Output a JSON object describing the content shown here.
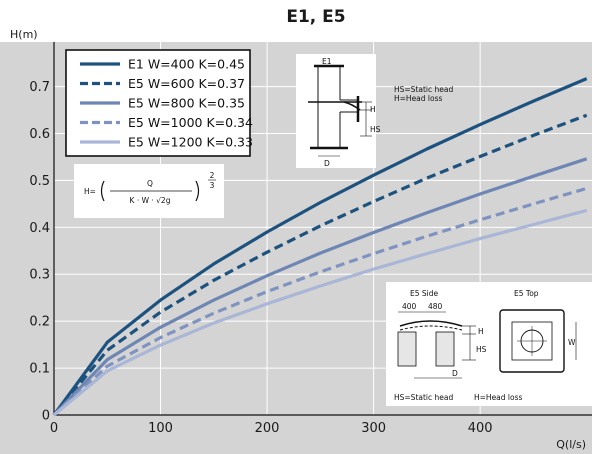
{
  "chart_data": {
    "type": "line",
    "title": "E1, E5",
    "xlabel": "Q(l/s)",
    "ylabel": "H(m)",
    "xlim": [
      0,
      500
    ],
    "ylim": [
      0,
      0.75
    ],
    "xticks": [
      "0",
      "100",
      "200",
      "300",
      "400"
    ],
    "yticks": [
      "0",
      "0.1",
      "0.2",
      "0.3",
      "0.4",
      "0.5",
      "0.6",
      "0.7"
    ],
    "grid": true,
    "legend_position": "top-left",
    "series": [
      {
        "name": "E1 W=400 K=0.45",
        "color": "#1d527f",
        "dash": "solid",
        "x": [
          0,
          50,
          100,
          150,
          200,
          250,
          300,
          350,
          400,
          450,
          500
        ],
        "y": [
          0,
          0.155,
          0.245,
          0.322,
          0.39,
          0.453,
          0.511,
          0.567,
          0.619,
          0.669,
          0.717
        ]
      },
      {
        "name": "E5 W=600 K=0.37",
        "color": "#1d527f",
        "dash": "dashed",
        "x": [
          0,
          50,
          100,
          150,
          200,
          250,
          300,
          350,
          400,
          450,
          500
        ],
        "y": [
          0,
          0.138,
          0.219,
          0.287,
          0.347,
          0.403,
          0.455,
          0.505,
          0.551,
          0.596,
          0.639
        ]
      },
      {
        "name": "E5 W=800 K=0.35",
        "color": "#6e86b3",
        "dash": "solid",
        "x": [
          0,
          50,
          100,
          150,
          200,
          250,
          300,
          350,
          400,
          450,
          500
        ],
        "y": [
          0,
          0.118,
          0.187,
          0.245,
          0.297,
          0.345,
          0.389,
          0.431,
          0.471,
          0.509,
          0.546
        ]
      },
      {
        "name": "E5 W=1000 K=0.34",
        "color": "#7f93c0",
        "dash": "dashed",
        "x": [
          0,
          50,
          100,
          150,
          200,
          250,
          300,
          350,
          400,
          450,
          500
        ],
        "y": [
          0,
          0.104,
          0.165,
          0.217,
          0.263,
          0.305,
          0.344,
          0.381,
          0.416,
          0.45,
          0.483
        ]
      },
      {
        "name": "E5 W=1200 K=0.33",
        "color": "#a9b6d6",
        "dash": "solid",
        "x": [
          0,
          50,
          100,
          150,
          200,
          250,
          300,
          350,
          400,
          450,
          500
        ],
        "y": [
          0,
          0.094,
          0.149,
          0.196,
          0.237,
          0.275,
          0.311,
          0.344,
          0.376,
          0.406,
          0.436
        ]
      }
    ],
    "formula": {
      "lhs": "H=",
      "numerator": "Q",
      "denominator": "K · W · √2g",
      "exp_num": "2",
      "exp_den": "3"
    },
    "annotations": {
      "e1_label": "E1",
      "e1_H": "H",
      "e1_HS": "HS",
      "e1_D": "D",
      "legend_hs": "HS=Static head",
      "legend_h": "H=Head loss",
      "e5_side": "E5 Side",
      "e5_top": "E5 Top",
      "dim_400": "400",
      "dim_480": "480",
      "e5_H": "H",
      "e5_HS": "HS",
      "e5_D": "D",
      "e5_W": "W",
      "bottom_hs": "HS=Static head",
      "bottom_h": "H=Head loss"
    },
    "colors": {
      "plot_bg": "#d4d4d4",
      "grid": "#ffffff",
      "axis": "#111111"
    }
  }
}
